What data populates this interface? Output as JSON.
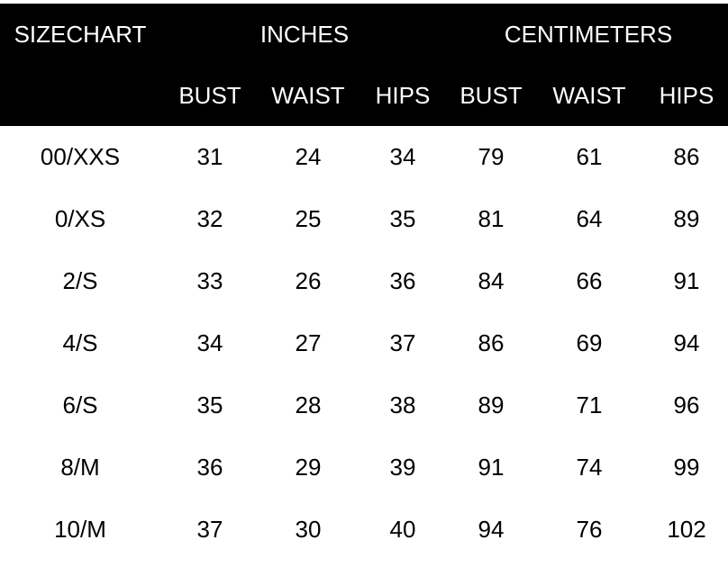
{
  "header": {
    "title": "SIZECHART",
    "group_inches": "INCHES",
    "group_centimeters": "CENTIMETERS",
    "columns": [
      "BUST",
      "WAIST",
      "HIPS",
      "BUST",
      "WAIST",
      "HIPS"
    ]
  },
  "rows": [
    {
      "size": "00/XXS",
      "values": [
        "31",
        "24",
        "34",
        "79",
        "61",
        "86"
      ]
    },
    {
      "size": "0/XS",
      "values": [
        "32",
        "25",
        "35",
        "81",
        "64",
        "89"
      ]
    },
    {
      "size": "2/S",
      "values": [
        "33",
        "26",
        "36",
        "84",
        "66",
        "91"
      ]
    },
    {
      "size": "4/S",
      "values": [
        "34",
        "27",
        "37",
        "86",
        "69",
        "94"
      ]
    },
    {
      "size": "6/S",
      "values": [
        "35",
        "28",
        "38",
        "89",
        "71",
        "96"
      ]
    },
    {
      "size": "8/M",
      "values": [
        "36",
        "29",
        "39",
        "91",
        "74",
        "99"
      ]
    },
    {
      "size": "10/M",
      "values": [
        "37",
        "30",
        "40",
        "94",
        "76",
        "102"
      ]
    }
  ]
}
